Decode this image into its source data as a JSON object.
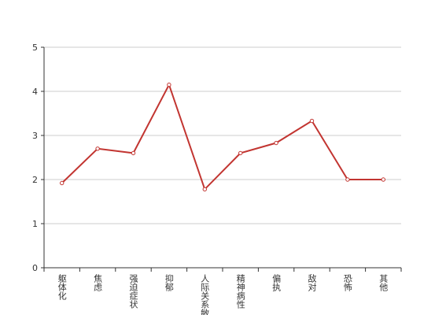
{
  "chart_data": {
    "type": "line",
    "categories": [
      "躯体化",
      "焦虑",
      "强迫症状",
      "抑郁",
      "人际关系敏感",
      "精神病性",
      "偏执",
      "敌对",
      "恐怖",
      "其他"
    ],
    "values": [
      1.92,
      2.7,
      2.6,
      4.15,
      1.78,
      2.6,
      2.83,
      3.33,
      2.0,
      2.0
    ],
    "color": "#c23531",
    "ylim": [
      0,
      5
    ],
    "yticks": [
      0,
      1,
      2,
      3,
      4,
      5
    ],
    "grid": true
  }
}
